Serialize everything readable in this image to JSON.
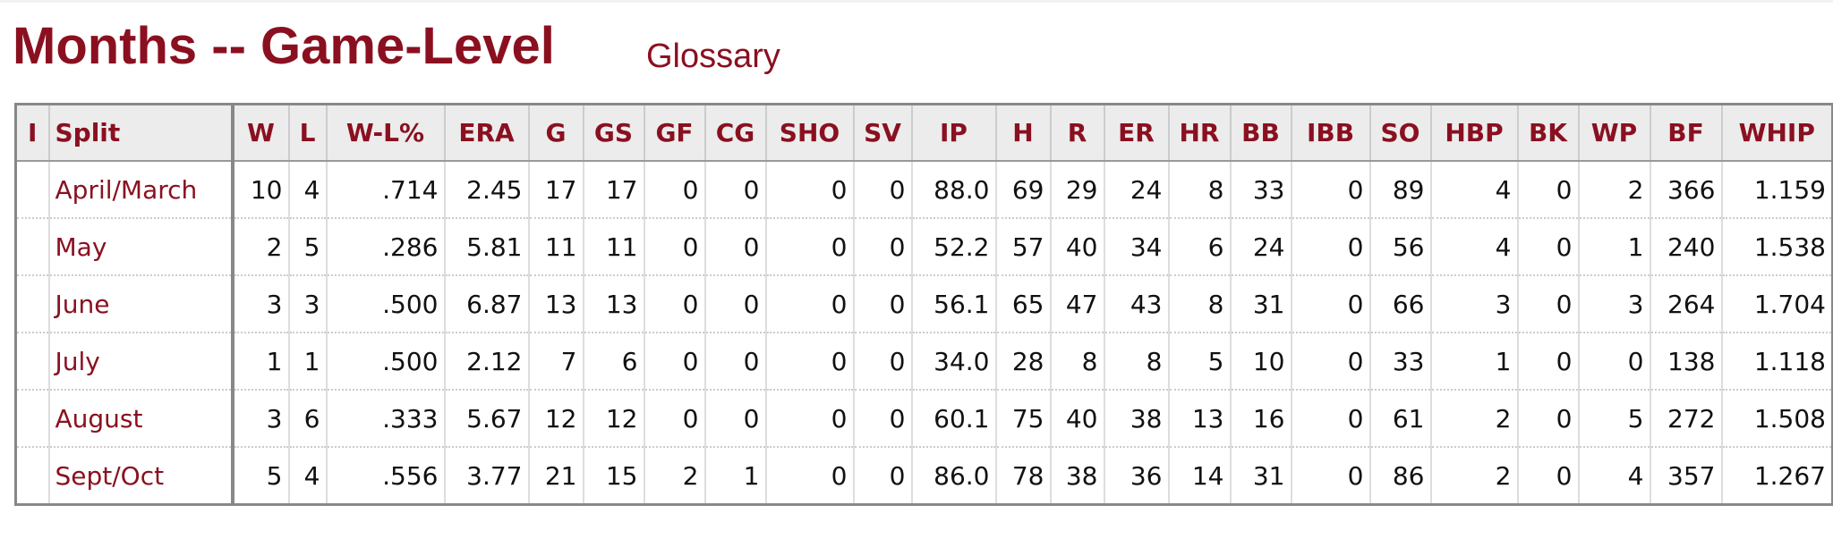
{
  "header": {
    "title": "Months -- Game-Level",
    "glossary": "Glossary"
  },
  "table": {
    "columns": [
      "I",
      "Split",
      "W",
      "L",
      "W-L%",
      "ERA",
      "G",
      "GS",
      "GF",
      "CG",
      "SHO",
      "SV",
      "IP",
      "H",
      "R",
      "ER",
      "HR",
      "BB",
      "IBB",
      "SO",
      "HBP",
      "BK",
      "WP",
      "BF",
      "WHIP"
    ],
    "rows": [
      {
        "split": "April/March",
        "stats": [
          "10",
          "4",
          ".714",
          "2.45",
          "17",
          "17",
          "0",
          "0",
          "0",
          "0",
          "88.0",
          "69",
          "29",
          "24",
          "8",
          "33",
          "0",
          "89",
          "4",
          "0",
          "2",
          "366",
          "1.159"
        ]
      },
      {
        "split": "May",
        "stats": [
          "2",
          "5",
          ".286",
          "5.81",
          "11",
          "11",
          "0",
          "0",
          "0",
          "0",
          "52.2",
          "57",
          "40",
          "34",
          "6",
          "24",
          "0",
          "56",
          "4",
          "0",
          "1",
          "240",
          "1.538"
        ]
      },
      {
        "split": "June",
        "stats": [
          "3",
          "3",
          ".500",
          "6.87",
          "13",
          "13",
          "0",
          "0",
          "0",
          "0",
          "56.1",
          "65",
          "47",
          "43",
          "8",
          "31",
          "0",
          "66",
          "3",
          "0",
          "3",
          "264",
          "1.704"
        ]
      },
      {
        "split": "July",
        "stats": [
          "1",
          "1",
          ".500",
          "2.12",
          "7",
          "6",
          "0",
          "0",
          "0",
          "0",
          "34.0",
          "28",
          "8",
          "8",
          "5",
          "10",
          "0",
          "33",
          "1",
          "0",
          "0",
          "138",
          "1.118"
        ]
      },
      {
        "split": "August",
        "stats": [
          "3",
          "6",
          ".333",
          "5.67",
          "12",
          "12",
          "0",
          "0",
          "0",
          "0",
          "60.1",
          "75",
          "40",
          "38",
          "13",
          "16",
          "0",
          "61",
          "2",
          "0",
          "5",
          "272",
          "1.508"
        ]
      },
      {
        "split": "Sept/Oct",
        "stats": [
          "5",
          "4",
          ".556",
          "3.77",
          "21",
          "15",
          "2",
          "1",
          "0",
          "0",
          "86.0",
          "78",
          "38",
          "36",
          "14",
          "31",
          "0",
          "86",
          "2",
          "0",
          "4",
          "357",
          "1.267"
        ]
      }
    ]
  }
}
